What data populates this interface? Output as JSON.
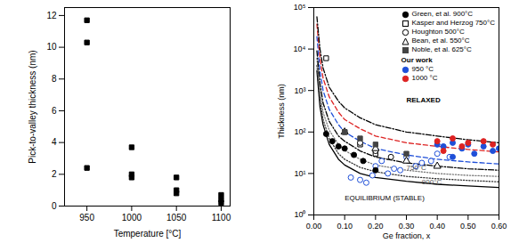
{
  "chart_data": [
    {
      "type": "scatter",
      "xlabel": "Temperature [°C]",
      "ylabel": "Pick-to-valley thickness (nm)",
      "xlim": [
        925,
        1110
      ],
      "xticks": [
        950,
        1000,
        1050,
        1100
      ],
      "ylim": [
        0,
        12.5
      ],
      "yticks": [
        0,
        2,
        4,
        6,
        8,
        10,
        12
      ],
      "grid": false,
      "series": [
        {
          "color": "#000000",
          "marker": "square",
          "x": [
            950,
            950,
            950,
            1000,
            1000,
            1000,
            1050,
            1050,
            1050,
            1100,
            1100,
            1100
          ],
          "values": [
            11.7,
            10.3,
            2.4,
            3.7,
            2.0,
            1.8,
            1.8,
            1.0,
            0.8,
            0.7,
            0.4,
            0.2
          ]
        }
      ]
    },
    {
      "type": "scatter",
      "log": "y",
      "xlabel": "Ge fraction, x",
      "ylabel": "Thickness (nm)",
      "xlim": [
        0,
        0.6
      ],
      "xticks": [
        {
          "value": 0,
          "label": "0.00"
        },
        {
          "value": 0.1,
          "label": "0.10"
        },
        {
          "value": 0.2,
          "label": "0.20"
        },
        {
          "value": 0.3,
          "label": "0.30"
        },
        {
          "value": 0.4,
          "label": "0.40"
        },
        {
          "value": 0.5,
          "label": "0.50"
        },
        {
          "value": 0.6,
          "label": "0.60"
        }
      ],
      "ylim": [
        1,
        100000
      ],
      "yticks": [
        {
          "value": 1,
          "label": "10⁰"
        },
        {
          "value": 10,
          "label": "10¹"
        },
        {
          "value": 100,
          "label": "10²"
        },
        {
          "value": 1000,
          "label": "10³"
        },
        {
          "value": 10000,
          "label": "10⁴"
        },
        {
          "value": 100000,
          "label": "10⁵"
        }
      ],
      "grid": false,
      "legend": "top-right",
      "series": [
        {
          "type": "line",
          "color": "#000000",
          "line_style": "solid",
          "x": [
            0.01,
            0.02,
            0.03,
            0.05,
            0.08,
            0.1,
            0.15,
            0.2,
            0.3,
            0.4,
            0.5,
            0.6
          ],
          "values": [
            3000,
            400,
            150,
            50,
            22,
            16,
            10,
            8,
            6.5,
            5.5,
            5,
            4.6
          ]
        },
        {
          "type": "line",
          "color": "#333333",
          "line_style": "dotted",
          "x": [
            0.01,
            0.02,
            0.03,
            0.05,
            0.08,
            0.1,
            0.15,
            0.2,
            0.3,
            0.4,
            0.5,
            0.6
          ],
          "values": [
            4000,
            600,
            200,
            70,
            30,
            22,
            14,
            11,
            8.5,
            7.5,
            6.8,
            6.3
          ]
        },
        {
          "type": "line",
          "color": "#777777",
          "line_style": "dotted",
          "x": [
            0.01,
            0.02,
            0.03,
            0.05,
            0.08,
            0.1,
            0.15,
            0.2,
            0.3,
            0.4,
            0.5,
            0.6
          ],
          "values": [
            6000,
            900,
            300,
            110,
            50,
            36,
            22,
            16,
            12,
            10,
            9,
            8.5
          ]
        },
        {
          "type": "line",
          "color": "#000000",
          "line_style": "dashdot",
          "x": [
            0.01,
            0.02,
            0.03,
            0.05,
            0.08,
            0.1,
            0.15,
            0.2,
            0.3,
            0.4,
            0.5,
            0.6
          ],
          "values": [
            9000,
            1500,
            500,
            180,
            80,
            60,
            35,
            25,
            18,
            15,
            13,
            12
          ]
        },
        {
          "type": "line",
          "color": "#1f4fd8",
          "line_style": "dashed",
          "x": [
            0.01,
            0.02,
            0.03,
            0.05,
            0.08,
            0.1,
            0.15,
            0.2,
            0.3,
            0.4,
            0.5,
            0.6
          ],
          "values": [
            20000,
            3000,
            1000,
            350,
            150,
            100,
            60,
            40,
            28,
            22,
            19,
            17
          ]
        },
        {
          "type": "line",
          "color": "#dd2222",
          "line_style": "dashed",
          "x": [
            0.01,
            0.02,
            0.03,
            0.05,
            0.08,
            0.1,
            0.15,
            0.2,
            0.3,
            0.4,
            0.5,
            0.6
          ],
          "values": [
            40000,
            6000,
            2000,
            700,
            300,
            200,
            120,
            80,
            55,
            45,
            38,
            33
          ]
        },
        {
          "type": "line",
          "color": "#000000",
          "line_style": "dashdot",
          "x": [
            0.01,
            0.02,
            0.03,
            0.05,
            0.08,
            0.1,
            0.15,
            0.2,
            0.3,
            0.4,
            0.5,
            0.6
          ],
          "values": [
            60000,
            10000,
            3500,
            1200,
            550,
            380,
            220,
            150,
            100,
            80,
            65,
            55
          ]
        },
        {
          "type": "scatter",
          "color": "#1f4fd8",
          "marker": "circle-open",
          "x": [
            0.12,
            0.15,
            0.17,
            0.19,
            0.2,
            0.22,
            0.24,
            0.26,
            0.28,
            0.3,
            0.33,
            0.35,
            0.38,
            0.4,
            0.44
          ],
          "values": [
            8,
            7,
            6,
            9,
            15,
            20,
            10,
            13,
            12,
            25,
            15,
            18,
            20,
            30,
            25
          ]
        },
        {
          "name": "Green, et al. 900°C",
          "color": "#000000",
          "marker": "circle",
          "x": [
            0.04,
            0.06,
            0.08,
            0.1,
            0.13,
            0.16,
            0.2
          ],
          "values": [
            90,
            60,
            45,
            40,
            28,
            20,
            12
          ]
        },
        {
          "name": "Kasper and Herzog 750°C",
          "color": "#000000",
          "marker": "square-open",
          "x": [
            0.04,
            0.1,
            0.15,
            0.2
          ],
          "values": [
            6000,
            100,
            50,
            30
          ]
        },
        {
          "name": "Houghton 500°C",
          "color": "#000000",
          "marker": "circle-open",
          "x": [
            0.15,
            0.2,
            0.25
          ],
          "values": [
            55,
            35,
            25
          ]
        },
        {
          "name": "Bean, et al. 550°C",
          "color": "#000000",
          "marker": "triangle-open",
          "x": [
            0.1,
            0.2,
            0.3,
            0.4
          ],
          "values": [
            100,
            40,
            20,
            15
          ]
        },
        {
          "name": "Noble, et al. 625°C",
          "color": "#444444",
          "marker": "square",
          "x": [
            0.1,
            0.15,
            0.2,
            0.3
          ],
          "values": [
            100,
            70,
            50,
            30
          ]
        },
        {
          "name": "950 °C",
          "group": "Our work",
          "color": "#1f4fd8",
          "marker": "circle",
          "x": [
            0.4,
            0.42,
            0.45,
            0.48,
            0.5,
            0.55,
            0.58,
            0.6,
            0.45,
            0.52
          ],
          "values": [
            50,
            45,
            55,
            40,
            50,
            45,
            35,
            40,
            25,
            30
          ]
        },
        {
          "name": "1000 °C",
          "group": "Our work",
          "color": "#dd2222",
          "marker": "circle",
          "x": [
            0.4,
            0.45,
            0.5,
            0.55,
            0.42,
            0.48,
            0.58
          ],
          "values": [
            60,
            70,
            55,
            60,
            35,
            45,
            50
          ]
        }
      ],
      "annotations": [
        {
          "text": "RELAXED",
          "x": 0.3,
          "y": 600,
          "color": "#000000"
        },
        {
          "text": "750°C",
          "x": 0.3,
          "y": 14,
          "color": "#555555"
        },
        {
          "text": "900°C",
          "x": 0.35,
          "y": 6.2,
          "color": "#555555"
        },
        {
          "text": "EQUILIBRIUM (STABLE)",
          "x": 0.1,
          "y": 2.6,
          "color": "#000000"
        }
      ]
    }
  ]
}
